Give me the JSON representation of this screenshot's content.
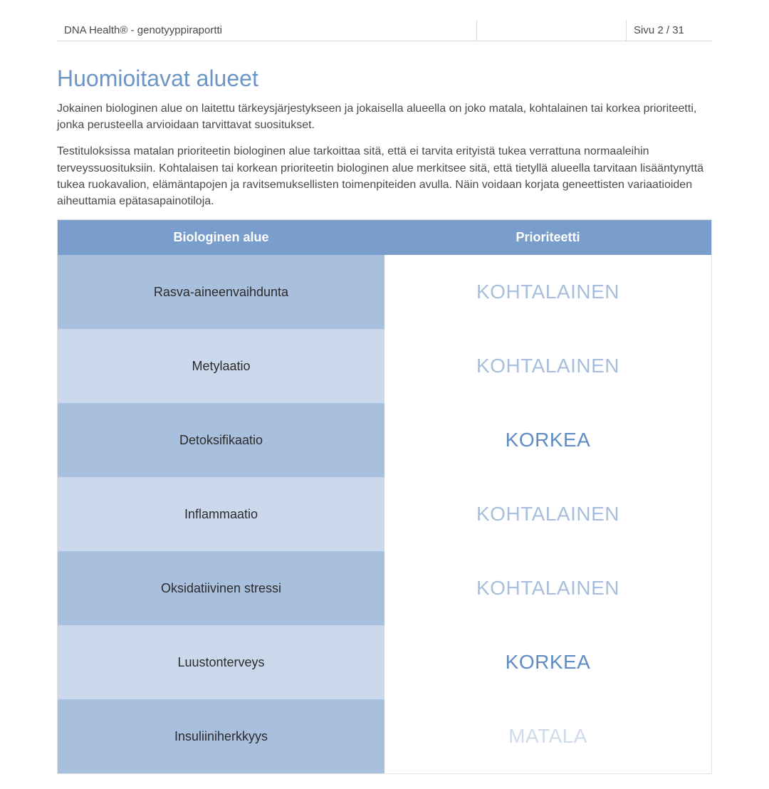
{
  "colors": {
    "title": "#6d94c6",
    "header_bg": "#7a9ecb",
    "row_odd_bg": "#a9bfde",
    "row_even_bg": "#cbd8ec",
    "priority_high": "#5f8cc4",
    "priority_moderate": "#a8bedd",
    "priority_low": "#cfdaea"
  },
  "topbar": {
    "brand_prefix": "DNA Health",
    "brand_suffix": " - genotyyppiraportti",
    "page_label": "Sivu 2 / 31"
  },
  "heading": "Huomioitavat alueet",
  "para1": "Jokainen biologinen alue on laitettu tärkeysjärjestykseen ja jokaisella alueella on joko matala, kohtalainen tai korkea prioriteetti, jonka perusteella arvioidaan tarvittavat suositukset.",
  "para2": "Testituloksissa matalan prioriteetin biologinen alue tarkoittaa sitä, että ei tarvita erityistä tukea verrattuna normaaleihin terveyssuosituksiin. Kohtalaisen tai korkean prioriteetin biologinen alue merkitsee sitä, että tietyllä alueella tarvitaan lisääntynyttä tukea ruokavalion, elämäntapojen ja ravitsemuksellisten toimenpiteiden avulla. Näin voidaan korjata geneettisten variaatioiden aiheuttamia epätasapainotiloja.",
  "table": {
    "col1": "Biologinen alue",
    "col2": "Prioriteetti",
    "rows": [
      {
        "area": "Rasva-aineenvaihdunta",
        "priority": "KOHTALAINEN",
        "level": "moderate"
      },
      {
        "area": "Metylaatio",
        "priority": "KOHTALAINEN",
        "level": "moderate"
      },
      {
        "area": "Detoksifikaatio",
        "priority": "KORKEA",
        "level": "high"
      },
      {
        "area": "Inflammaatio",
        "priority": "KOHTALAINEN",
        "level": "moderate"
      },
      {
        "area": "Oksidatiivinen stressi",
        "priority": "KOHTALAINEN",
        "level": "moderate"
      },
      {
        "area": "Luustonterveys",
        "priority": "KORKEA",
        "level": "high"
      },
      {
        "area": "Insuliiniherkkyys",
        "priority": "MATALA",
        "level": "low"
      }
    ]
  }
}
